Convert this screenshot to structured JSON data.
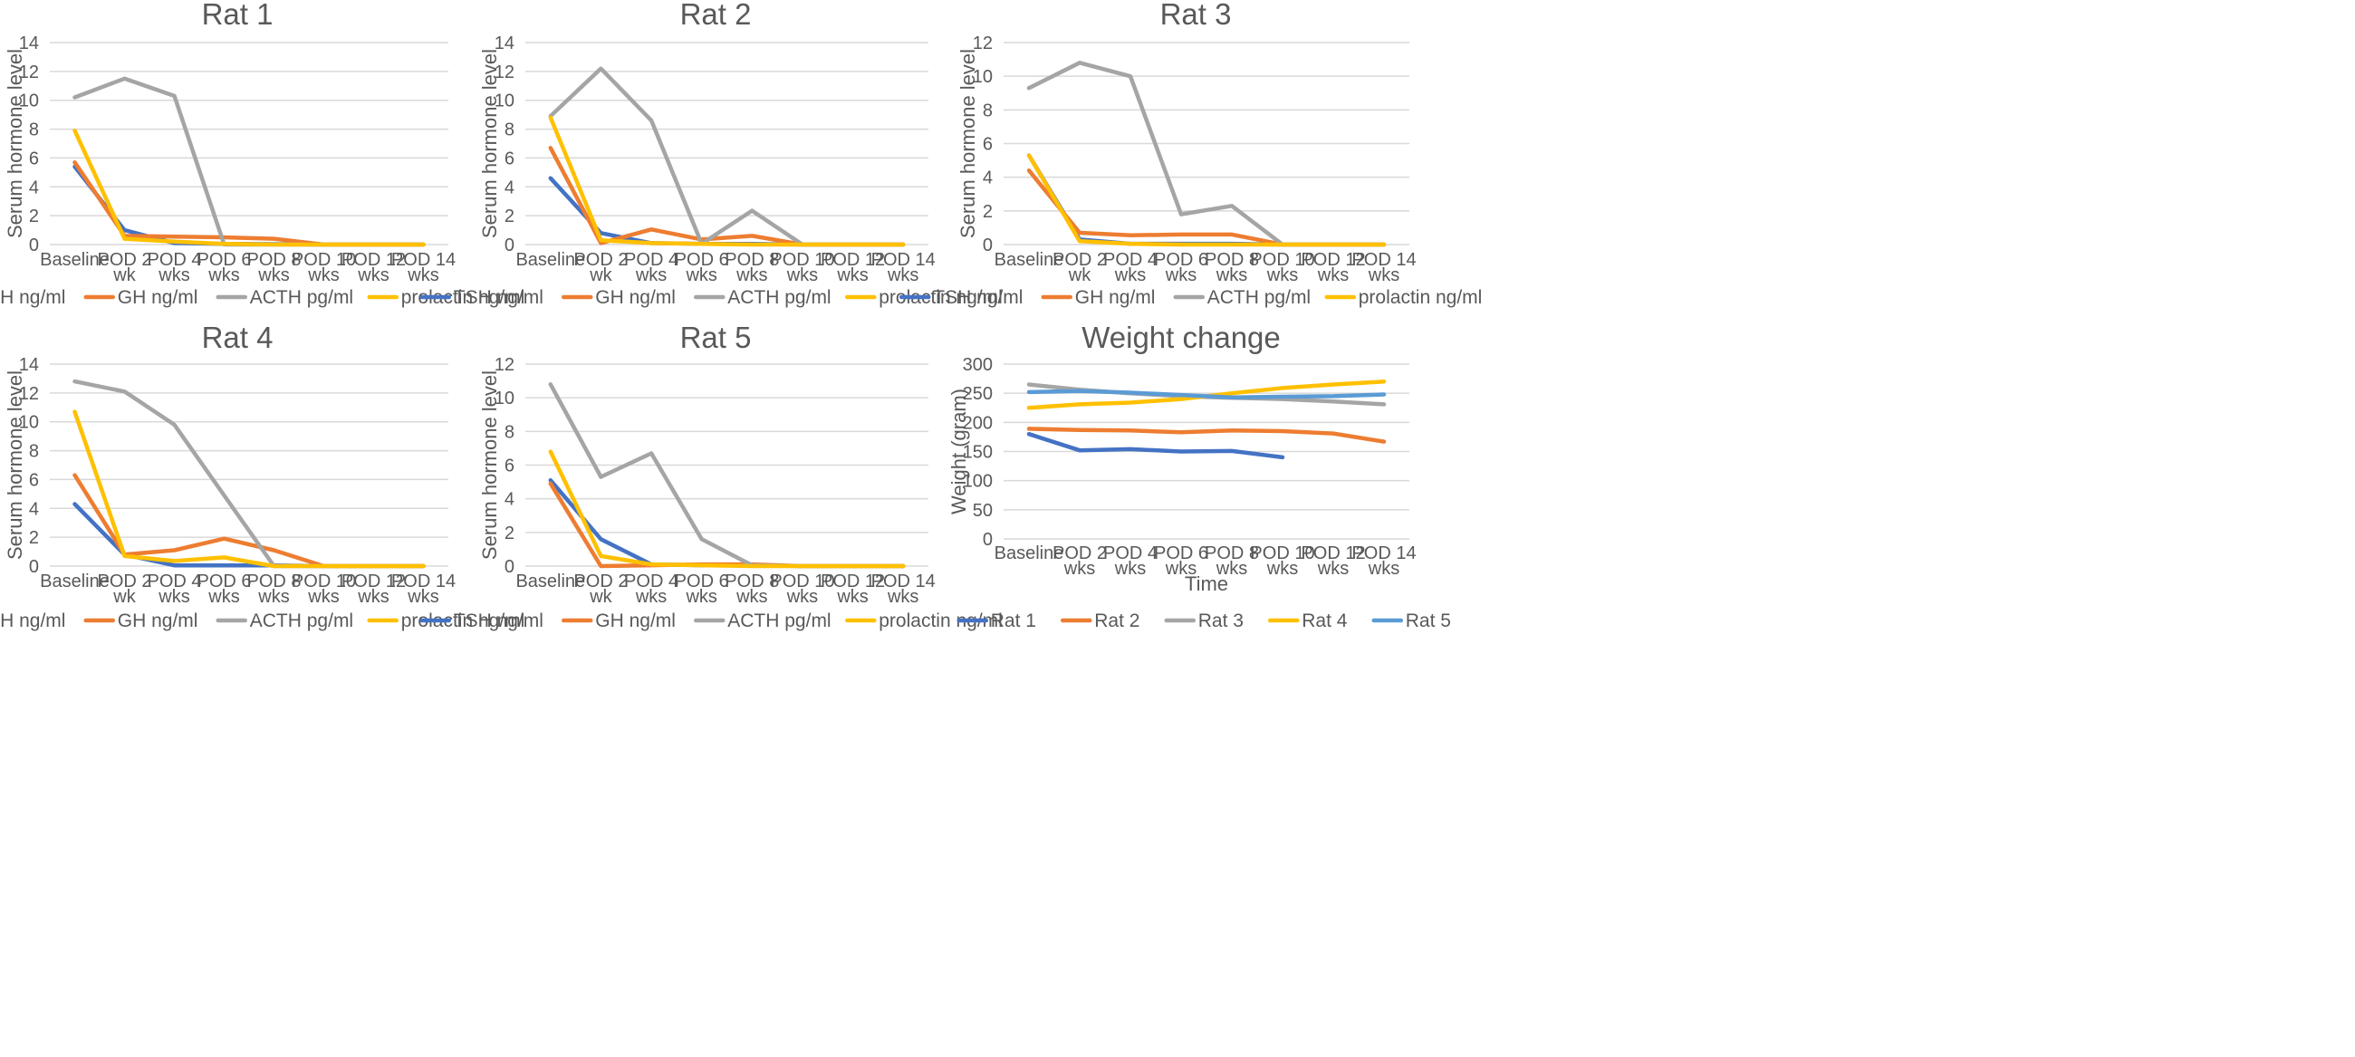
{
  "colors": {
    "TSH": "#4472C4",
    "GH": "#ED7D31",
    "ACTH": "#A5A5A5",
    "prolactin": "#FFC000",
    "Rat 1": "#4472C4",
    "Rat 2": "#ED7D31",
    "Rat 3": "#A5A5A5",
    "Rat 4": "#FFC000",
    "Rat 5": "#5B9BD5",
    "grid": "#D9D9D9",
    "text": "#595959"
  },
  "chart_data": [
    {
      "type": "line",
      "title": "Rat 1",
      "ylabel": "Serum hormone level",
      "xlabel": "",
      "ylim": [
        0,
        14
      ],
      "yticks": [
        0,
        2,
        4,
        6,
        8,
        10,
        12,
        14
      ],
      "grid": true,
      "legend": "bottom",
      "categories": [
        "Baseline",
        "POD 2 wk",
        "POD 4 wks",
        "POD 6 wks",
        "POD 8 wks",
        "POD 10 wks",
        "POD 12 wks",
        "POD 14 wks"
      ],
      "series": [
        {
          "name": "TSH ng/ml",
          "key": "TSH",
          "values": [
            5.4,
            1.0,
            0.1,
            0.05,
            0.03,
            0,
            0,
            0
          ]
        },
        {
          "name": "GH ng/ml",
          "key": "GH",
          "values": [
            5.7,
            0.6,
            0.55,
            0.5,
            0.4,
            0,
            0,
            0
          ]
        },
        {
          "name": "ACTH pg/ml",
          "key": "ACTH",
          "values": [
            10.2,
            11.5,
            10.3,
            0,
            0,
            0,
            0,
            0
          ]
        },
        {
          "name": "prolactin  ng/ml",
          "key": "prolactin",
          "values": [
            7.9,
            0.4,
            0.2,
            0.05,
            0,
            0,
            0,
            0
          ]
        }
      ]
    },
    {
      "type": "line",
      "title": "Rat 2",
      "ylabel": "Serum hormone level",
      "xlabel": "",
      "ylim": [
        0,
        14
      ],
      "yticks": [
        0,
        2,
        4,
        6,
        8,
        10,
        12,
        14
      ],
      "grid": true,
      "legend": "bottom",
      "categories": [
        "Baseline",
        "POD 2 wk",
        "POD 4 wks",
        "POD 6 wks",
        "POD 8 wks",
        "POD 10 wks",
        "POD 12 wks",
        "POD 14 wks"
      ],
      "series": [
        {
          "name": "TSH ng/ml",
          "key": "TSH",
          "values": [
            4.6,
            0.8,
            0.1,
            0.05,
            0.05,
            0,
            0,
            0
          ]
        },
        {
          "name": "GH ng/ml",
          "key": "GH",
          "values": [
            6.7,
            0.1,
            1.05,
            0.35,
            0.6,
            0,
            0,
            0
          ]
        },
        {
          "name": "ACTH pg/ml",
          "key": "ACTH",
          "values": [
            8.9,
            12.2,
            8.6,
            0.05,
            2.35,
            0,
            0,
            0
          ]
        },
        {
          "name": "prolactin  ng/ml",
          "key": "prolactin",
          "values": [
            8.8,
            0.3,
            0.1,
            0.05,
            0,
            0,
            0,
            0
          ]
        }
      ]
    },
    {
      "type": "line",
      "title": "Rat 3",
      "ylabel": "Serum hormone level",
      "xlabel": "",
      "ylim": [
        0,
        12
      ],
      "yticks": [
        0,
        2,
        4,
        6,
        8,
        10,
        12
      ],
      "grid": true,
      "legend": "bottom",
      "categories": [
        "Baseline",
        "POD 2 wk",
        "POD 4 wks",
        "POD 6 wks",
        "POD 8 wks",
        "POD 10 wks",
        "POD 12 wks",
        "POD 14 wks"
      ],
      "series": [
        {
          "name": "TSH ng/ml",
          "key": "TSH",
          "values": [
            5.3,
            0.3,
            0.05,
            0.05,
            0.05,
            0,
            0,
            0
          ]
        },
        {
          "name": "GH ng/ml",
          "key": "GH",
          "values": [
            4.4,
            0.7,
            0.55,
            0.6,
            0.6,
            0,
            0,
            0
          ]
        },
        {
          "name": "ACTH pg/ml",
          "key": "ACTH",
          "values": [
            9.3,
            10.8,
            10.0,
            1.8,
            2.3,
            0,
            0,
            0
          ]
        },
        {
          "name": "prolactin  ng/ml",
          "key": "prolactin",
          "values": [
            5.3,
            0.2,
            0.05,
            0,
            0,
            0,
            0,
            0
          ]
        }
      ]
    },
    {
      "type": "line",
      "title": "Rat 4",
      "ylabel": "Serum hormone level",
      "xlabel": "",
      "ylim": [
        0,
        14
      ],
      "yticks": [
        0,
        2,
        4,
        6,
        8,
        10,
        12,
        14
      ],
      "grid": true,
      "legend": "bottom",
      "categories": [
        "Baseline",
        "POD 2 wk",
        "POD 4 wks",
        "POD 6 wks",
        "POD 8 wks",
        "POD 10 wks",
        "POD 12 wks",
        "POD 14 wks"
      ],
      "series": [
        {
          "name": "TSH ng/ml",
          "key": "TSH",
          "values": [
            4.3,
            0.8,
            0.05,
            0.05,
            0.05,
            0,
            0,
            0
          ]
        },
        {
          "name": "GH ng/ml",
          "key": "GH",
          "values": [
            6.3,
            0.8,
            1.1,
            1.9,
            1.1,
            0,
            0,
            0
          ]
        },
        {
          "name": "ACTH pg/ml",
          "key": "ACTH",
          "values": [
            12.8,
            12.1,
            9.8,
            4.9,
            0,
            0,
            0,
            0
          ]
        },
        {
          "name": "prolactin  ng/ml",
          "key": "prolactin",
          "values": [
            10.7,
            0.7,
            0.35,
            0.6,
            0,
            0,
            0,
            0
          ]
        }
      ]
    },
    {
      "type": "line",
      "title": "Rat 5",
      "ylabel": "Serum hormone level",
      "xlabel": "",
      "ylim": [
        0,
        12
      ],
      "yticks": [
        0,
        2,
        4,
        6,
        8,
        10,
        12
      ],
      "grid": true,
      "legend": "bottom",
      "categories": [
        "Baseline",
        "POD 2 wk",
        "POD 4 wks",
        "POD 6 wks",
        "POD 8 wks",
        "POD 10 wks",
        "POD 12 wks",
        "POD 14 wks"
      ],
      "series": [
        {
          "name": "TSH ng/ml",
          "key": "TSH",
          "values": [
            5.1,
            1.6,
            0.1,
            0.05,
            0.05,
            0,
            0,
            0
          ]
        },
        {
          "name": "GH ng/ml",
          "key": "GH",
          "values": [
            4.9,
            0,
            0.05,
            0.1,
            0.1,
            0,
            0,
            0
          ]
        },
        {
          "name": "ACTH pg/ml",
          "key": "ACTH",
          "values": [
            10.8,
            5.3,
            6.7,
            1.6,
            0.05,
            0,
            0,
            0
          ]
        },
        {
          "name": "prolactin  ng/ml",
          "key": "prolactin",
          "values": [
            6.8,
            0.6,
            0.1,
            0.05,
            0,
            0,
            0,
            0
          ]
        }
      ]
    },
    {
      "type": "line",
      "title": "Weight change",
      "ylabel": "Weight (gram)",
      "xlabel": "Time",
      "ylim": [
        0,
        300
      ],
      "yticks": [
        0,
        50,
        100,
        150,
        200,
        250,
        300
      ],
      "grid": true,
      "legend": "bottom",
      "categories": [
        "Baseline",
        "POD 2 wks",
        "POD 4 wks",
        "POD 6 wks",
        "POD 8 wks",
        "POD 10 wks",
        "POD 12 wks",
        "POD 14 wks"
      ],
      "series": [
        {
          "name": "Rat 1",
          "key": "Rat 1",
          "values": [
            180,
            152,
            154,
            150,
            151,
            140,
            null,
            null
          ]
        },
        {
          "name": "Rat 2",
          "key": "Rat 2",
          "values": [
            189,
            187,
            186,
            183,
            186,
            185,
            181,
            167
          ]
        },
        {
          "name": "Rat 3",
          "key": "Rat 3",
          "values": [
            265,
            256,
            250,
            245,
            242,
            240,
            236,
            231
          ]
        },
        {
          "name": "Rat 4",
          "key": "Rat 4",
          "values": [
            225,
            231,
            234,
            240,
            250,
            259,
            265,
            270
          ]
        },
        {
          "name": "Rat 5",
          "key": "Rat 5",
          "values": [
            252,
            254,
            251,
            247,
            243,
            244,
            245,
            248
          ]
        }
      ]
    }
  ]
}
